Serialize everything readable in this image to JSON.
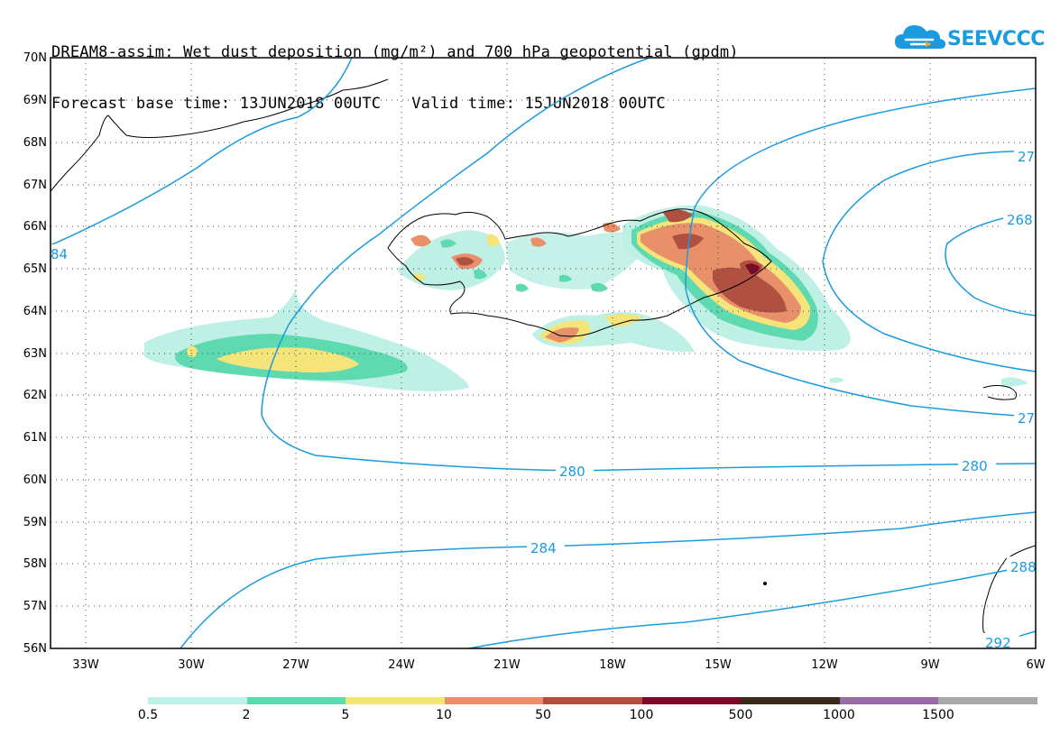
{
  "title": {
    "line1": "DREAM8-assim: Wet dust deposition (mg/m²) and 700 hPa geopotential (gpdm)",
    "base_label": "Forecast base time: 13JUN2018 00UTC",
    "valid_label": "Valid time: 15JUN2018 00UTC"
  },
  "logo": {
    "text": "SEEVCCC",
    "icon": "cloud-icon",
    "color": "#1a9be0"
  },
  "axes": {
    "lat_labels": [
      "70N",
      "69N",
      "68N",
      "67N",
      "66N",
      "65N",
      "64N",
      "63N",
      "62N",
      "61N",
      "60N",
      "59N",
      "58N",
      "57N",
      "56N"
    ],
    "lon_labels": [
      "33W",
      "30W",
      "27W",
      "24W",
      "21W",
      "18W",
      "15W",
      "12W",
      "9W",
      "6W"
    ]
  },
  "contour_labels": [
    "280",
    "280",
    "284",
    "268",
    "27",
    "27",
    "288",
    "292",
    "84"
  ],
  "legend": {
    "colors": [
      "#bff0e6",
      "#5fd9b0",
      "#f5e47a",
      "#e8906a",
      "#b05040",
      "#7a0a2a",
      "#3a2818",
      "#9a6aa8",
      "#a8a8a8"
    ],
    "labels": [
      "0.5",
      "2",
      "5",
      "10",
      "50",
      "100",
      "500",
      "1000",
      "1500"
    ]
  }
}
